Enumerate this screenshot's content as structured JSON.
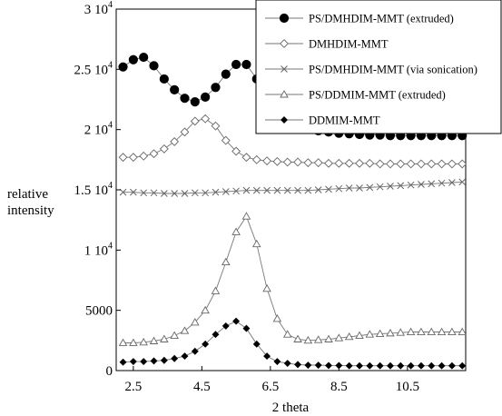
{
  "chart_data": {
    "type": "line",
    "title": "",
    "xlabel": "2 theta",
    "ylabel": "relative intensity",
    "xlim": [
      2.0,
      12.2
    ],
    "ylim": [
      0,
      30000
    ],
    "x_ticks": [
      2.5,
      4.5,
      6.5,
      8.5,
      10.5
    ],
    "x_tick_labels": [
      "2.5",
      "4.5",
      "6.5",
      "8.5",
      "10.5"
    ],
    "y_ticks": [
      {
        "value": 0,
        "label": "0"
      },
      {
        "value": 5000,
        "label": "5000"
      },
      {
        "value": 10000,
        "base": "1 10",
        "exp": "4"
      },
      {
        "value": 15000,
        "base": "1.5 10",
        "exp": "4"
      },
      {
        "value": 20000,
        "base": "2 10",
        "exp": "4"
      },
      {
        "value": 25000,
        "base": "2.5 10",
        "exp": "4"
      },
      {
        "value": 30000,
        "base": "3 10",
        "exp": "4"
      }
    ],
    "grid": false,
    "legend_position": "top-right",
    "series": [
      {
        "name": "PS/DMHDIM-MMT (extruded)",
        "marker": "filled-circle",
        "color": "#000000",
        "x": [
          2.2,
          2.5,
          2.8,
          3.1,
          3.4,
          3.7,
          4.0,
          4.3,
          4.6,
          4.9,
          5.2,
          5.5,
          5.8,
          6.1,
          6.4,
          6.7,
          7.0,
          7.3,
          7.6,
          7.9,
          8.2,
          8.5,
          8.8,
          9.1,
          9.4,
          9.7,
          10.0,
          10.3,
          10.6,
          10.9,
          11.2,
          11.5,
          11.8,
          12.1
        ],
        "y": [
          25200,
          25800,
          26000,
          25300,
          24200,
          23300,
          22600,
          22300,
          22700,
          23500,
          24600,
          25400,
          25400,
          24200,
          22800,
          21700,
          20900,
          20400,
          20100,
          19900,
          19800,
          19700,
          19650,
          19600,
          19550,
          19550,
          19500,
          19500,
          19500,
          19500,
          19500,
          19500,
          19500,
          19500
        ]
      },
      {
        "name": "DMHDIM-MMT",
        "marker": "open-diamond",
        "color": "#666666",
        "x": [
          2.2,
          2.5,
          2.8,
          3.1,
          3.4,
          3.7,
          4.0,
          4.3,
          4.6,
          4.9,
          5.2,
          5.5,
          5.8,
          6.1,
          6.4,
          6.7,
          7.0,
          7.3,
          7.6,
          7.9,
          8.2,
          8.5,
          8.8,
          9.1,
          9.4,
          9.7,
          10.0,
          10.3,
          10.6,
          10.9,
          11.2,
          11.5,
          11.8,
          12.1
        ],
        "y": [
          17700,
          17700,
          17800,
          18000,
          18400,
          19000,
          19800,
          20700,
          20900,
          20300,
          19100,
          18200,
          17700,
          17500,
          17400,
          17350,
          17300,
          17300,
          17250,
          17250,
          17200,
          17200,
          17200,
          17200,
          17200,
          17150,
          17150,
          17150,
          17150,
          17150,
          17150,
          17150,
          17150,
          17150
        ]
      },
      {
        "name": "PS/DMHDIM-MMT (via sonication)",
        "marker": "cross",
        "color": "#666666",
        "x": [
          2.2,
          2.5,
          2.8,
          3.1,
          3.4,
          3.7,
          4.0,
          4.3,
          4.6,
          4.9,
          5.2,
          5.5,
          5.8,
          6.1,
          6.4,
          6.7,
          7.0,
          7.3,
          7.6,
          7.9,
          8.2,
          8.5,
          8.8,
          9.1,
          9.4,
          9.7,
          10.0,
          10.3,
          10.6,
          10.9,
          11.2,
          11.5,
          11.8,
          12.1
        ],
        "y": [
          14800,
          14800,
          14750,
          14750,
          14700,
          14700,
          14700,
          14750,
          14750,
          14800,
          14850,
          14900,
          14950,
          14950,
          14950,
          14950,
          14950,
          14950,
          14950,
          15000,
          15050,
          15100,
          15150,
          15150,
          15200,
          15250,
          15300,
          15350,
          15400,
          15450,
          15500,
          15550,
          15600,
          15650
        ]
      },
      {
        "name": "PS/DDMIM-MMT (extruded)",
        "marker": "open-triangle",
        "color": "#666666",
        "x": [
          2.2,
          2.5,
          2.8,
          3.1,
          3.4,
          3.7,
          4.0,
          4.3,
          4.6,
          4.9,
          5.2,
          5.5,
          5.8,
          6.1,
          6.4,
          6.7,
          7.0,
          7.3,
          7.6,
          7.9,
          8.2,
          8.5,
          8.8,
          9.1,
          9.4,
          9.7,
          10.0,
          10.3,
          10.6,
          10.9,
          11.2,
          11.5,
          11.8,
          12.1
        ],
        "y": [
          2300,
          2300,
          2350,
          2450,
          2600,
          2900,
          3300,
          4000,
          5000,
          6600,
          9000,
          11500,
          12800,
          10500,
          6800,
          4300,
          3000,
          2600,
          2500,
          2550,
          2600,
          2700,
          2800,
          2900,
          3000,
          3050,
          3100,
          3150,
          3200,
          3200,
          3200,
          3200,
          3200,
          3200
        ]
      },
      {
        "name": "DDMIM-MMT",
        "marker": "filled-diamond",
        "color": "#000000",
        "x": [
          2.2,
          2.5,
          2.8,
          3.1,
          3.4,
          3.7,
          4.0,
          4.3,
          4.6,
          4.9,
          5.2,
          5.5,
          5.8,
          6.1,
          6.4,
          6.7,
          7.0,
          7.3,
          7.6,
          7.9,
          8.2,
          8.5,
          8.8,
          9.1,
          9.4,
          9.7,
          10.0,
          10.3,
          10.6,
          10.9,
          11.2,
          11.5,
          11.8,
          12.1
        ],
        "y": [
          700,
          750,
          750,
          800,
          850,
          1000,
          1200,
          1600,
          2200,
          3000,
          3700,
          4100,
          3500,
          2200,
          1200,
          750,
          600,
          500,
          450,
          450,
          420,
          420,
          400,
          400,
          400,
          400,
          400,
          400,
          400,
          400,
          400,
          400,
          400,
          400
        ]
      }
    ]
  }
}
